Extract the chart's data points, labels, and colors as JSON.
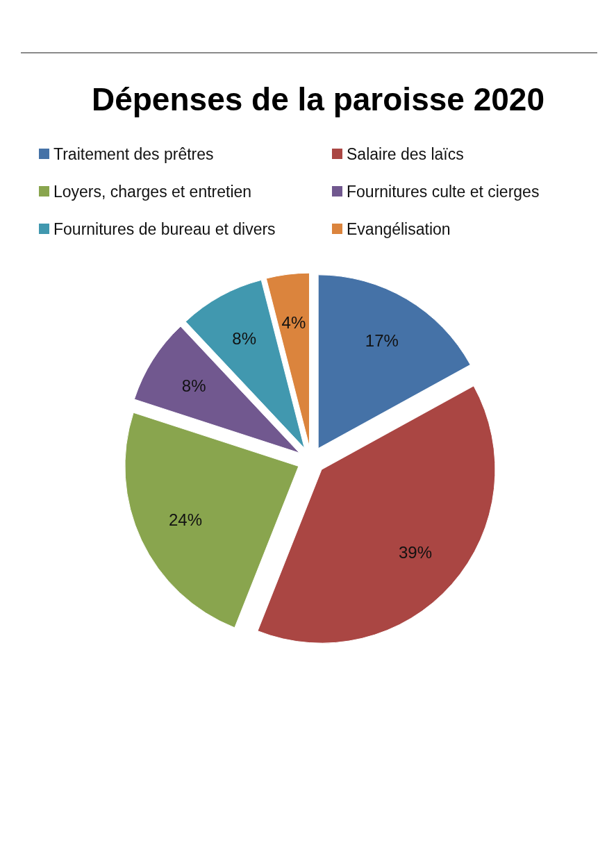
{
  "chart_data": {
    "type": "pie",
    "title": "Dépenses de la paroisse 2020",
    "categories": [
      "Traitement des prêtres",
      "Salaire des laïcs",
      "Loyers, charges et entretien",
      "Fournitures culte et cierges",
      "Fournitures de bureau et divers",
      "Evangélisation"
    ],
    "values": [
      17,
      39,
      24,
      8,
      8,
      4
    ],
    "colors": [
      "#4572a7",
      "#aa4643",
      "#89a54e",
      "#71588f",
      "#4198af",
      "#db843d"
    ],
    "value_labels": [
      "17%",
      "39%",
      "24%",
      "8%",
      "8%",
      "4%"
    ],
    "legend": "top"
  }
}
